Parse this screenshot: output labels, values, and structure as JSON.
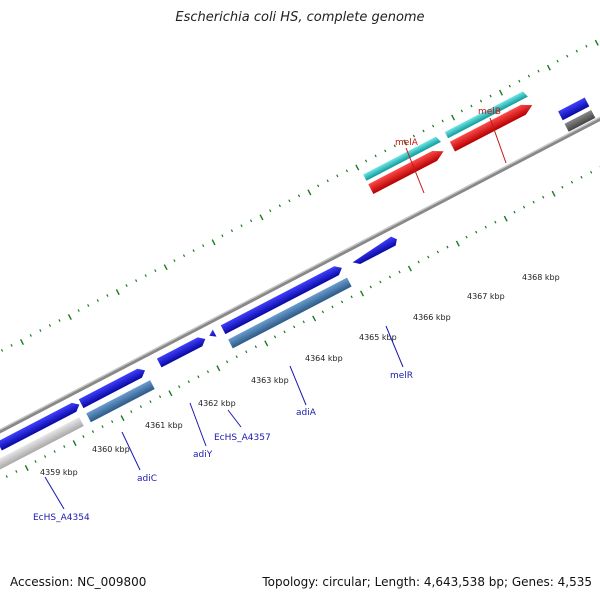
{
  "title": "Escherichia coli HS, complete genome",
  "footer": {
    "accession": "Accession: NC_009800",
    "summary": "Topology: circular; Length: 4,643,538 bp; Genes: 4,535"
  },
  "tick_labels": [
    "4359 kbp",
    "4360 kbp",
    "4361 kbp",
    "4362 kbp",
    "4363 kbp",
    "4364 kbp",
    "4365 kbp",
    "4366 kbp",
    "4367 kbp",
    "4368 kbp"
  ],
  "gene_labels": {
    "melA": "melA",
    "melB": "melB",
    "melR": "melR",
    "adiA": "adiA",
    "EcHS_A4357": "EcHS_A4357",
    "adiY": "adiY",
    "adiC": "adiC",
    "EcHS_A4354": "EcHS_A4354"
  },
  "colors": {
    "forward_cds": "#1010e0",
    "reverse_cds": "#4a7fb5",
    "rna_red": "#ee1010",
    "cyan_feature": "#20c8c8",
    "backbone": "#888888",
    "grey_feature": "#c8c8c8",
    "ticks": "#1a7a1a"
  }
}
